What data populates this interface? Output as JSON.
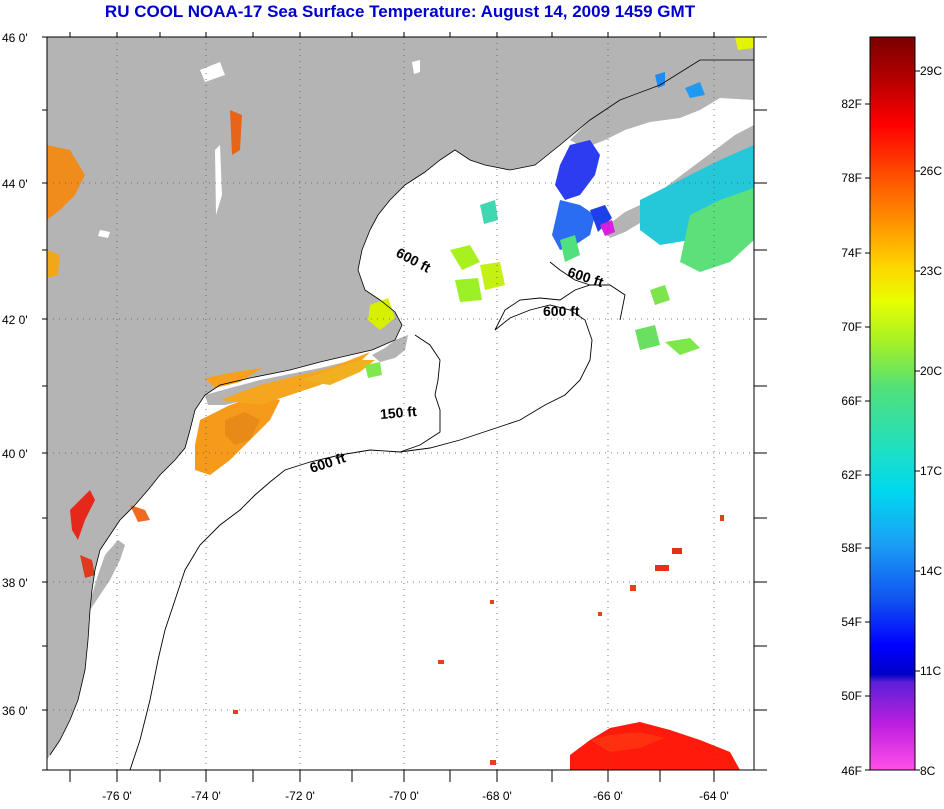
{
  "title": "RU COOL  NOAA-17  Sea Surface Temperature:  August 14, 2009 1459 GMT",
  "map": {
    "lat_ticks": [
      "46 0'",
      "44 0'",
      "42 0'",
      "40 0'",
      "38 0'",
      "36 0'"
    ],
    "lon_ticks": [
      "-76 0'",
      "-74 0'",
      "-72 0'",
      "-70 0'",
      "-68 0'",
      "-66 0'",
      "-64 0'"
    ],
    "contour_labels": [
      "600 ft",
      "600 ft",
      "600 ft",
      "150 ft",
      "600 ft"
    ],
    "colors": {
      "land": "#b4b4b4",
      "ocean_no_data": "#ffffff",
      "contour": "#000000"
    }
  },
  "colorbar": {
    "fahrenheit_labels": [
      "82F",
      "78F",
      "74F",
      "70F",
      "66F",
      "62F",
      "58F",
      "54F",
      "50F",
      "46F"
    ],
    "celsius_labels": [
      "29C",
      "26C",
      "23C",
      "20C",
      "17C",
      "14C",
      "11C",
      "8C"
    ]
  }
}
